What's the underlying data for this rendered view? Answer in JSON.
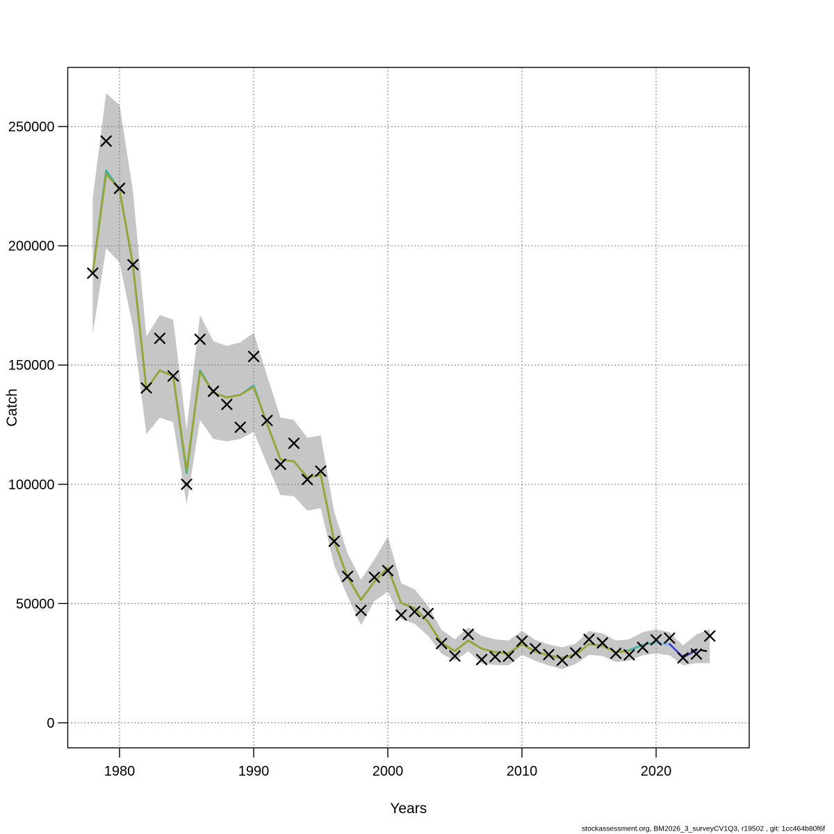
{
  "footer": {
    "text": "stockassessment.org, BM2026_3_surveyCV1Q3, r19502 , git: 1cc464b80f6f"
  },
  "chart_data": {
    "type": "line",
    "title": "",
    "xlabel": "Years",
    "ylabel": "Catch",
    "xlim": [
      1976.14,
      2026.94
    ],
    "ylim": [
      -10500,
      274800
    ],
    "x_ticks": [
      1980,
      1990,
      2000,
      2010,
      2020
    ],
    "y_ticks": [
      0,
      50000,
      100000,
      150000,
      200000,
      250000
    ],
    "y_tick_labels": [
      "0",
      "50000",
      "100000",
      "150000",
      "200000",
      "250000"
    ],
    "grid": "dotted",
    "legend_position": "none",
    "years": [
      1978,
      1979,
      1980,
      1981,
      1982,
      1983,
      1984,
      1985,
      1986,
      1987,
      1988,
      1989,
      1990,
      1991,
      1992,
      1993,
      1994,
      1995,
      1996,
      1997,
      1998,
      1999,
      2000,
      2001,
      2002,
      2003,
      2004,
      2005,
      2006,
      2007,
      2008,
      2009,
      2010,
      2011,
      2012,
      2013,
      2014,
      2015,
      2016,
      2017,
      2018,
      2019,
      2020,
      2021,
      2022,
      2023,
      2024
    ],
    "observations": {
      "label": "observed-catch",
      "marker": "x",
      "color": "#000000",
      "values": [
        188500,
        243900,
        224100,
        192100,
        140400,
        161200,
        145400,
        100000,
        160800,
        139000,
        133500,
        123900,
        153600,
        126800,
        108400,
        117200,
        102000,
        105500,
        76100,
        61400,
        47100,
        61000,
        63800,
        45200,
        46600,
        45800,
        33200,
        28000,
        37100,
        26500,
        27700,
        27900,
        34200,
        31100,
        28600,
        26200,
        29300,
        35000,
        33500,
        29100,
        28500,
        31600,
        34800,
        35500,
        27200,
        28800,
        36400
      ]
    },
    "confidence_band": {
      "color": "#C6C6C6",
      "start_year": 1978,
      "lower": [
        163000,
        199000,
        193000,
        166000,
        121000,
        128000,
        126000,
        91500,
        127000,
        119000,
        118000,
        119000,
        122000,
        108500,
        95500,
        95000,
        89000,
        90000,
        66000,
        53000,
        41000,
        51000,
        55000,
        43500,
        41500,
        36500,
        29000,
        26000,
        30000,
        24800,
        24300,
        24100,
        28500,
        26000,
        24000,
        22500,
        24700,
        28500,
        28000,
        25500,
        26000,
        28300,
        29100,
        28300,
        24100,
        25000,
        25000
      ],
      "upper": [
        220000,
        264000,
        259000,
        223000,
        162000,
        171000,
        169000,
        123000,
        171000,
        160000,
        158000,
        159500,
        163500,
        145500,
        128000,
        127000,
        119500,
        120500,
        88500,
        71000,
        60000,
        68500,
        78000,
        58500,
        56000,
        49000,
        39000,
        35000,
        40000,
        36500,
        35000,
        34500,
        38500,
        34800,
        32800,
        31600,
        33200,
        38500,
        37500,
        34500,
        35000,
        38000,
        39200,
        38000,
        32400,
        37000,
        39300
      ]
    },
    "fit_runs": [
      {
        "label": "fit-line-teal",
        "color": "#33B3A6",
        "width": 2.8,
        "dash": "",
        "start_year": 1978,
        "values": [
          188500,
          231600,
          223500,
          192000,
          139900,
          147700,
          145400,
          104600,
          147800,
          138400,
          136400,
          137500,
          141400,
          125300,
          110400,
          109600,
          102900,
          104000,
          76100,
          61200,
          51500,
          59200,
          65000,
          50200,
          48100,
          42300,
          33500,
          30100,
          34500,
          31100,
          29600,
          29100,
          33000,
          29900,
          28200,
          27200,
          28600,
          33000,
          32300,
          29600,
          30400,
          32700,
          33700
        ]
      },
      {
        "label": "fit-line-olive",
        "color": "#98A535",
        "width": 2.8,
        "dash": "",
        "start_year": 1978,
        "values": [
          188500,
          230200,
          223500,
          192000,
          139900,
          147700,
          145400,
          105800,
          147200,
          138400,
          136400,
          137500,
          140800,
          125300,
          110400,
          109600,
          102900,
          104000,
          76100,
          61200,
          51500,
          59200,
          65000,
          50200,
          48100,
          42300,
          33500,
          30100,
          34500,
          31100,
          29600,
          29100,
          33000,
          29900,
          28200,
          27200,
          28600,
          33000,
          32300,
          29600,
          30100
        ]
      },
      {
        "label": "fit-line-skyblue",
        "color": "#79B7E6",
        "width": 2.6,
        "dash": "",
        "start_year": 2020,
        "values": [
          33700,
          32700,
          27700
        ]
      },
      {
        "label": "fit-line-navy",
        "color": "#3F3FC3",
        "width": 2.6,
        "dash": "",
        "start_year": 2021,
        "values": [
          33100,
          27400,
          30400
        ]
      },
      {
        "label": "fit-line-current-dashed",
        "color": "#151515",
        "width": 2.6,
        "dash": "8 6",
        "start_year": 2022,
        "values": [
          27900,
          30800,
          29800
        ]
      }
    ]
  }
}
